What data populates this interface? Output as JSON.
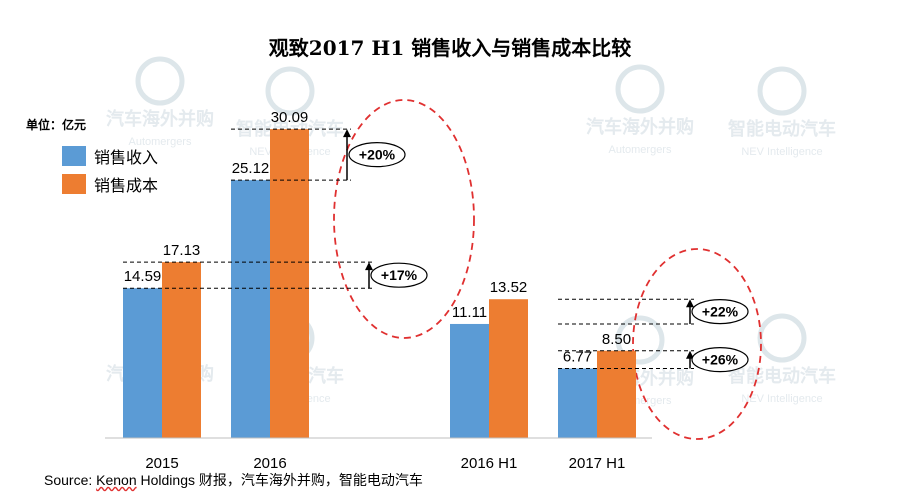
{
  "unit_label": "单位：亿元",
  "source": {
    "prefix": "Source: ",
    "kenon": "Kenon",
    "rest": " Holdings 财报，汽车海外并购，智能电动汽车"
  },
  "watermarks": {
    "cn_1": "汽车海外并购",
    "en_1": "Automergers",
    "cn_2": "智能电动汽车",
    "en_2": "NEV Intelligence"
  },
  "colors": {
    "revenue": "#5b9bd5",
    "cost": "#ed7d31",
    "ellipse": "#e03030"
  },
  "chart_data": {
    "type": "bar",
    "title": "观致2017 H1 销售收入与销售成本比较",
    "categories": [
      "2015",
      "2016",
      "",
      "2016 H1",
      "2017 H1"
    ],
    "series": [
      {
        "name": "销售收入",
        "values": [
          14.59,
          25.12,
          null,
          11.11,
          6.77
        ]
      },
      {
        "name": "销售成本",
        "values": [
          17.13,
          30.09,
          null,
          13.52,
          8.5
        ]
      }
    ],
    "value_labels": [
      [
        "14.59",
        "25.12",
        "",
        "11.11",
        "6.77"
      ],
      [
        "17.13",
        "30.09",
        "",
        "13.52",
        "8.50"
      ]
    ],
    "ylim": [
      0,
      34
    ],
    "legend_position": "top-left",
    "grid": false,
    "annotations": [
      {
        "text": "+20%",
        "category_index": 1,
        "from": 25.12,
        "to": 30.09
      },
      {
        "text": "+17%",
        "category_index": 0,
        "from": 14.59,
        "to": 17.13
      },
      {
        "text": "+22%",
        "category_index": 4,
        "from": 11.11,
        "to": 13.52
      },
      {
        "text": "+26%",
        "category_index": 4,
        "from": 6.77,
        "to": 8.5
      }
    ]
  }
}
